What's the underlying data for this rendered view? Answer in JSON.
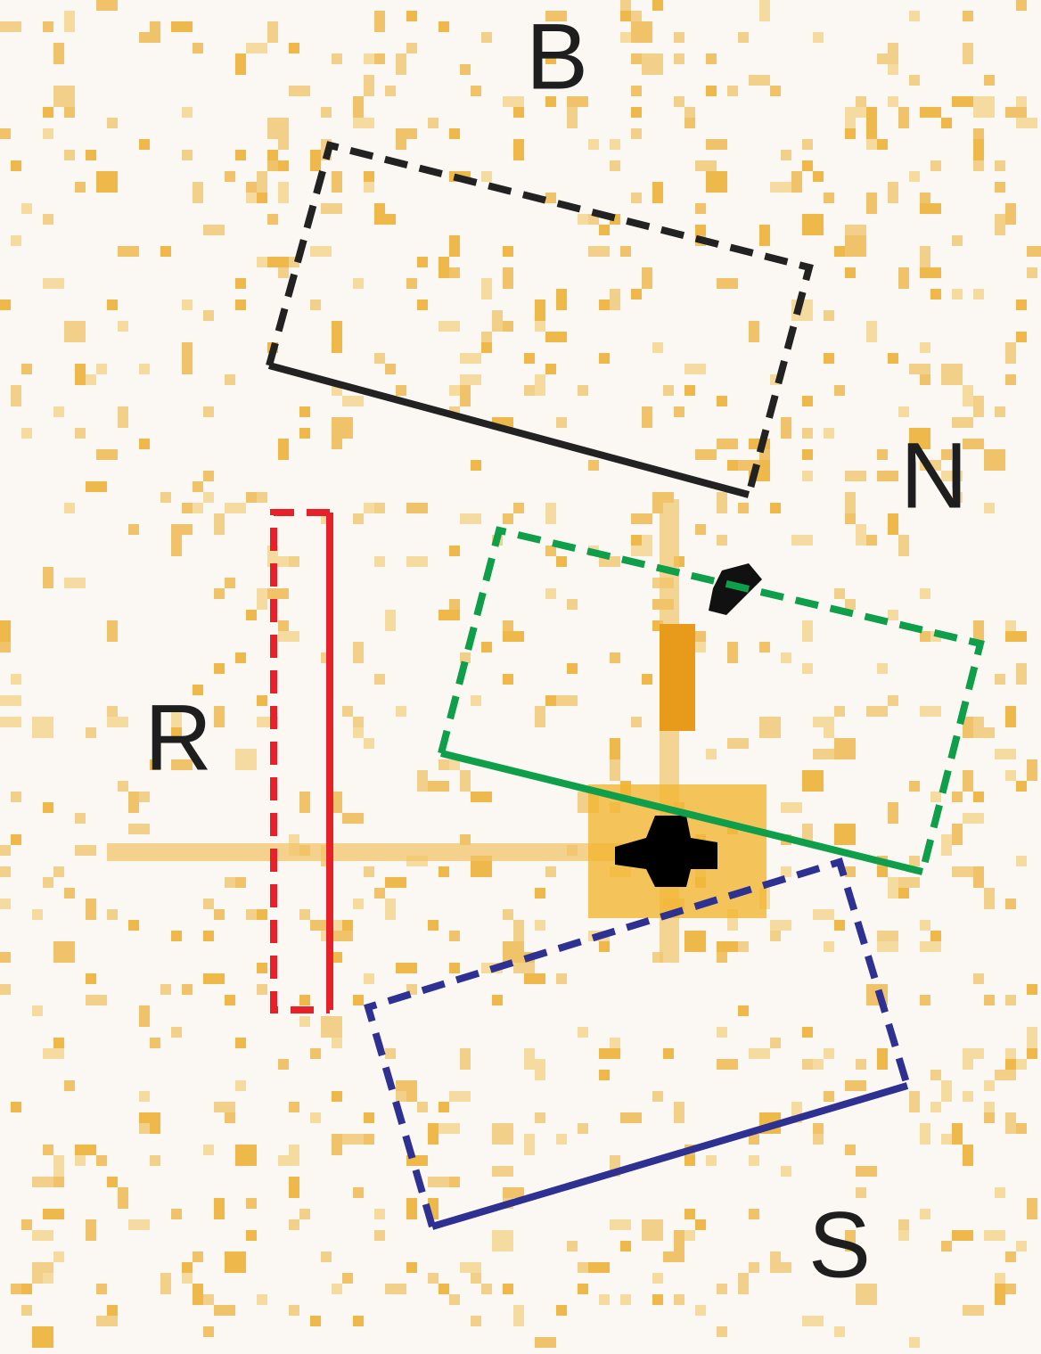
{
  "regions": [
    {
      "label": "B"
    },
    {
      "label": "N"
    },
    {
      "label": "R"
    },
    {
      "label": "S"
    }
  ]
}
